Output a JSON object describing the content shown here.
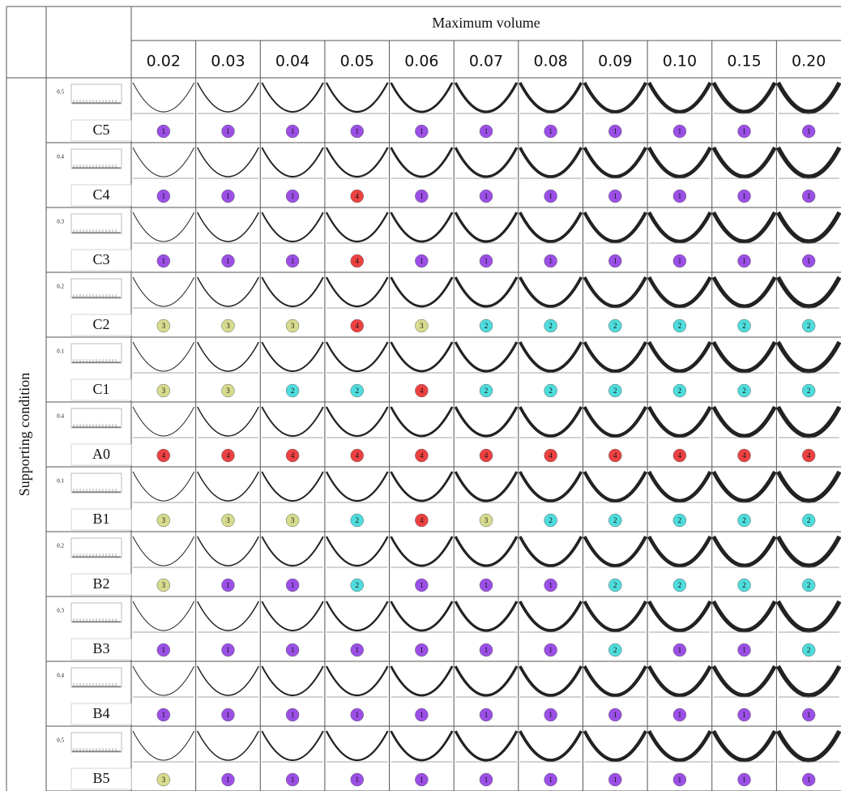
{
  "header": {
    "row_label": "Supporting condition",
    "column_group": "Maximum volume",
    "columns": [
      "0.02",
      "0.03",
      "0.04",
      "0.05",
      "0.06",
      "0.07",
      "0.08",
      "0.09",
      "0.10",
      "0.15",
      "0.20"
    ]
  },
  "badge_colors": {
    "1": "#9b4fe6",
    "2": "#4fdcdc",
    "3": "#d6db8e",
    "4": "#ec4141"
  },
  "rows": [
    {
      "label": "C5",
      "height": "0.5",
      "badges": [
        1,
        1,
        1,
        1,
        1,
        1,
        1,
        1,
        1,
        1,
        1
      ]
    },
    {
      "label": "C4",
      "height": "0.4",
      "badges": [
        1,
        1,
        1,
        4,
        1,
        1,
        1,
        1,
        1,
        1,
        1
      ]
    },
    {
      "label": "C3",
      "height": "0.3",
      "badges": [
        1,
        1,
        1,
        4,
        1,
        1,
        1,
        1,
        1,
        1,
        1
      ]
    },
    {
      "label": "C2",
      "height": "0.2",
      "badges": [
        3,
        3,
        3,
        4,
        3,
        2,
        2,
        2,
        2,
        2,
        2
      ]
    },
    {
      "label": "C1",
      "height": "0.1",
      "badges": [
        3,
        3,
        2,
        2,
        4,
        2,
        2,
        2,
        2,
        2,
        2
      ]
    },
    {
      "label": "A0",
      "height": "0.4",
      "badges": [
        4,
        4,
        4,
        4,
        4,
        4,
        4,
        4,
        4,
        4,
        4
      ]
    },
    {
      "label": "B1",
      "height": "0.1",
      "badges": [
        3,
        3,
        3,
        2,
        4,
        3,
        2,
        2,
        2,
        2,
        2
      ]
    },
    {
      "label": "B2",
      "height": "0.2",
      "badges": [
        3,
        1,
        1,
        2,
        1,
        1,
        1,
        2,
        2,
        2,
        2
      ]
    },
    {
      "label": "B3",
      "height": "0.3",
      "badges": [
        1,
        1,
        1,
        1,
        1,
        1,
        1,
        2,
        1,
        1,
        2
      ]
    },
    {
      "label": "B4",
      "height": "0.4",
      "badges": [
        1,
        1,
        1,
        1,
        1,
        1,
        1,
        1,
        1,
        1,
        1
      ]
    },
    {
      "label": "B5",
      "height": "0.5",
      "badges": [
        3,
        1,
        1,
        1,
        1,
        1,
        1,
        1,
        1,
        1,
        1
      ]
    }
  ]
}
